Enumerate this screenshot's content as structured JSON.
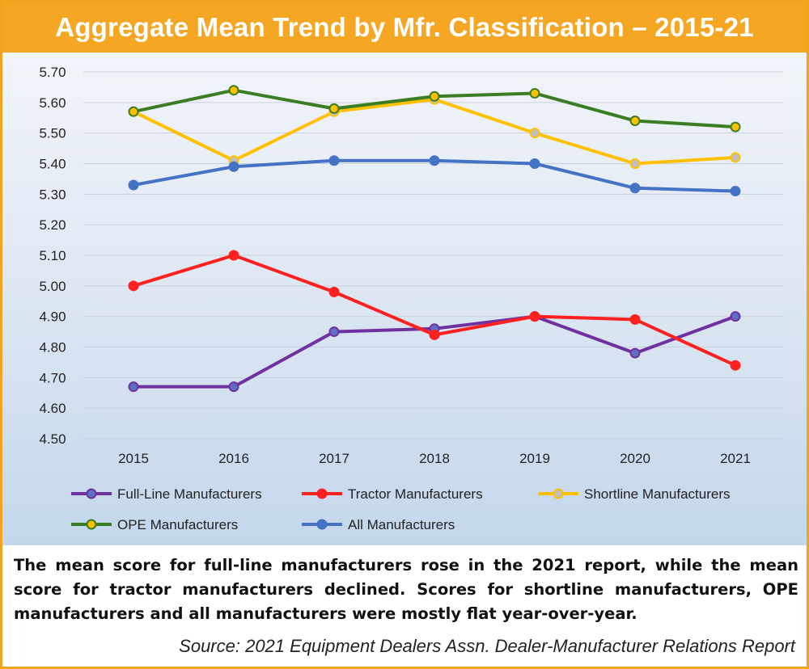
{
  "header": {
    "title": "Aggregate Mean Trend by Mfr. Classification – 2015-21"
  },
  "chart_data": {
    "type": "line",
    "title": "Aggregate Mean Trend by Mfr. Classification – 2015-21",
    "xlabel": "",
    "ylabel": "",
    "ylim": [
      4.5,
      5.7
    ],
    "ytick_step": 0.1,
    "y_tick_labels": [
      "4.50",
      "4.60",
      "4.70",
      "4.80",
      "4.90",
      "5.00",
      "5.10",
      "5.20",
      "5.30",
      "5.40",
      "5.50",
      "5.60",
      "5.70"
    ],
    "grid": true,
    "legend_position": "bottom",
    "categories": [
      "2015",
      "2016",
      "2017",
      "2018",
      "2019",
      "2020",
      "2021"
    ],
    "series": [
      {
        "name": "Full-Line Manufacturers",
        "color": "#7030a0",
        "marker_color": "#5b6fc4",
        "values": [
          4.67,
          4.67,
          4.85,
          4.86,
          4.9,
          4.78,
          4.9
        ]
      },
      {
        "name": "Tractor Manufacturers",
        "color": "#ff2020",
        "marker_color": "#ff2020",
        "values": [
          5.0,
          5.1,
          4.98,
          4.84,
          4.9,
          4.89,
          4.74
        ]
      },
      {
        "name": "Shortline Manufacturers",
        "color": "#ffc000",
        "marker_color": "#bfbfbf",
        "values": [
          5.57,
          5.41,
          5.57,
          5.61,
          5.5,
          5.4,
          5.42
        ]
      },
      {
        "name": "OPE Manufacturers",
        "color": "#3b7d23",
        "marker_color": "#ffc000",
        "values": [
          5.57,
          5.64,
          5.58,
          5.62,
          5.63,
          5.54,
          5.52
        ]
      },
      {
        "name": "All Manufacturers",
        "color": "#4472c4",
        "marker_color": "#4472c4",
        "values": [
          5.33,
          5.39,
          5.41,
          5.41,
          5.4,
          5.32,
          5.31
        ]
      }
    ]
  },
  "caption": {
    "text": "The mean score for full-line manufacturers rose in the 2021 report, while the mean score for tractor manufacturers declined. Scores for shortline manufacturers, OPE manufacturers and all manufacturers were mostly flat year-over-year."
  },
  "source": {
    "text": "Source: 2021 Equipment Dealers Assn. Dealer-Manufacturer Relations Report"
  }
}
